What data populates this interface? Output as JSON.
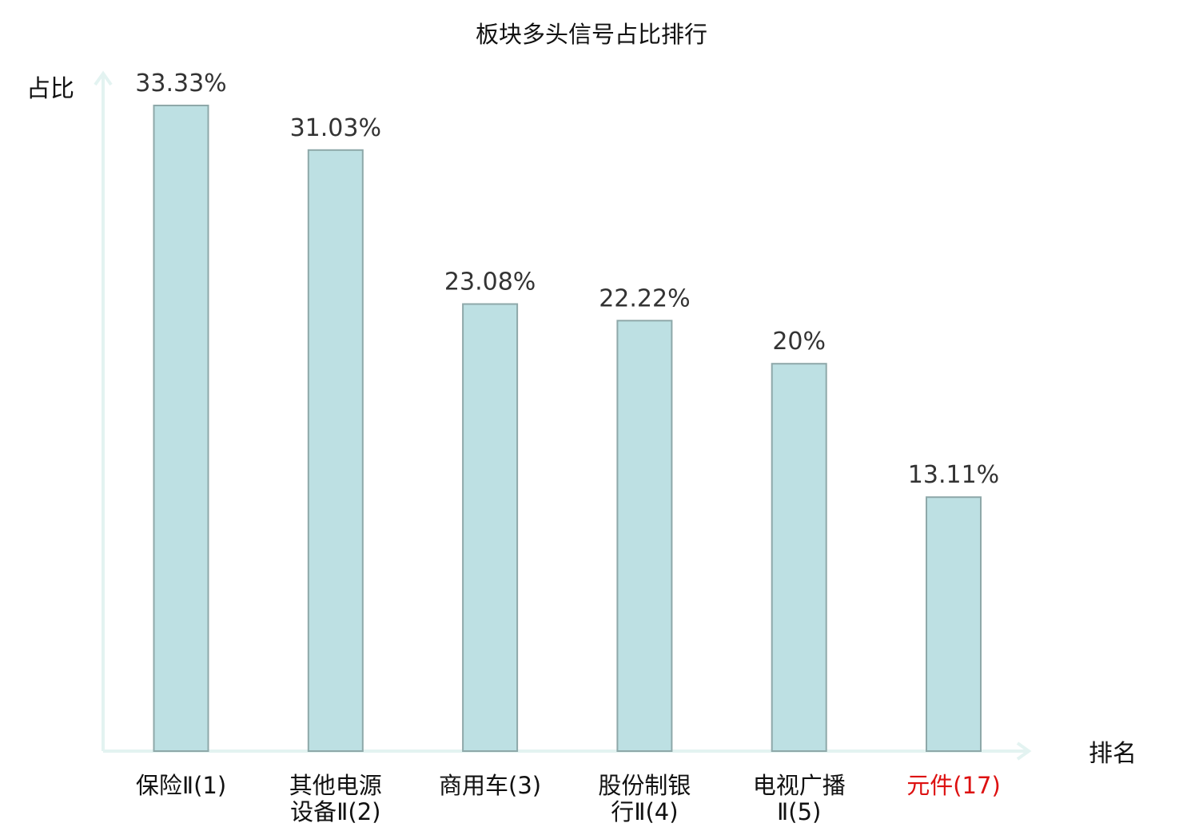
{
  "chart_data": {
    "type": "bar",
    "title": "板块多头信号占比排行",
    "ylabel": "占比",
    "xlabel": "排名",
    "ylim": [
      0,
      35
    ],
    "grid": false,
    "categories": [
      [
        "保险Ⅱ(1)"
      ],
      [
        "其他电源",
        "设备Ⅱ(2)"
      ],
      [
        "商用车(3)"
      ],
      [
        "股份制银",
        "行Ⅱ(4)"
      ],
      [
        "电视广播",
        "Ⅱ(5)"
      ],
      [
        "元件(17)"
      ]
    ],
    "values": [
      33.33,
      31.03,
      23.08,
      22.22,
      20,
      13.11
    ],
    "value_labels": [
      "33.33%",
      "31.03%",
      "23.08%",
      "22.22%",
      "20%",
      "13.11%"
    ],
    "highlight_index": 5,
    "colors": {
      "bar_fill": "#bde0e3",
      "bar_stroke": "#8ea8a9",
      "axis": "#e3f3f1",
      "highlight_text": "#dd1111",
      "value_text": "#333333"
    }
  }
}
